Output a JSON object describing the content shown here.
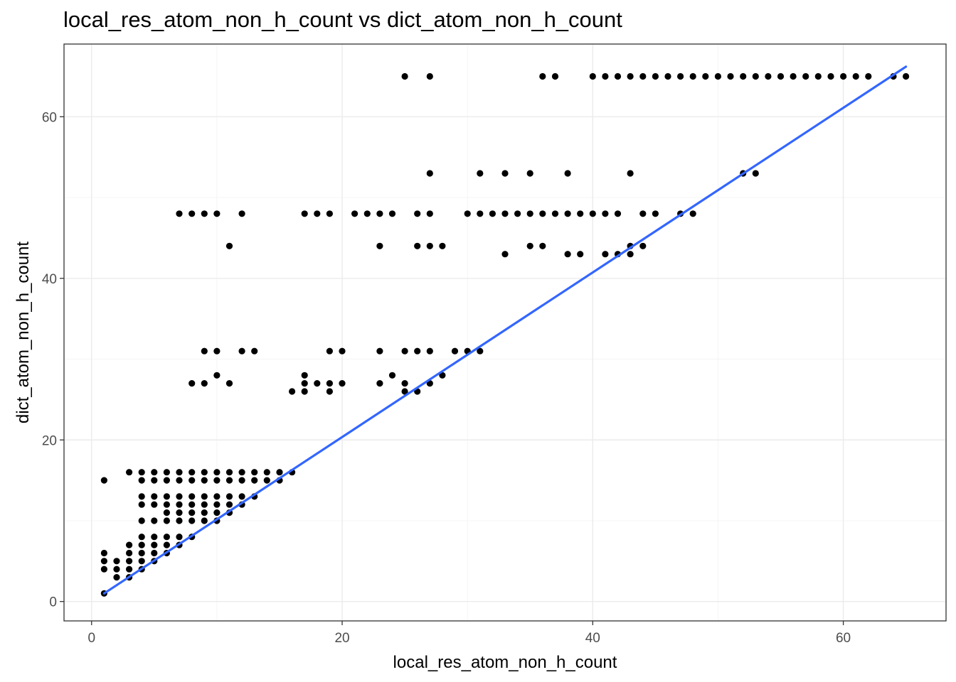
{
  "chart_data": {
    "type": "scatter",
    "title": "local_res_atom_non_h_count vs dict_atom_non_h_count",
    "xlabel": "local_res_atom_non_h_count",
    "ylabel": "dict_atom_non_h_count",
    "xlim": [
      -2.2,
      68.2
    ],
    "ylim": [
      -2.4,
      69.0
    ],
    "x_ticks": [
      0,
      20,
      40,
      60
    ],
    "y_ticks": [
      0,
      20,
      40,
      60
    ],
    "grid": true,
    "point_color": "#000000",
    "fit_line": {
      "color": "#3366ff",
      "x": [
        1,
        65
      ],
      "y": [
        1.0,
        66.2
      ]
    },
    "points": [
      [
        1,
        1
      ],
      [
        1,
        4
      ],
      [
        1,
        5
      ],
      [
        1,
        6
      ],
      [
        1,
        15
      ],
      [
        2,
        3
      ],
      [
        2,
        4
      ],
      [
        2,
        5
      ],
      [
        3,
        3
      ],
      [
        3,
        4
      ],
      [
        3,
        5
      ],
      [
        3,
        6
      ],
      [
        3,
        7
      ],
      [
        3,
        16
      ],
      [
        4,
        4
      ],
      [
        4,
        5
      ],
      [
        4,
        6
      ],
      [
        4,
        7
      ],
      [
        4,
        8
      ],
      [
        4,
        10
      ],
      [
        4,
        12
      ],
      [
        4,
        13
      ],
      [
        4,
        15
      ],
      [
        4,
        16
      ],
      [
        5,
        5
      ],
      [
        5,
        6
      ],
      [
        5,
        7
      ],
      [
        5,
        8
      ],
      [
        5,
        10
      ],
      [
        5,
        12
      ],
      [
        5,
        13
      ],
      [
        5,
        15
      ],
      [
        5,
        16
      ],
      [
        6,
        6
      ],
      [
        6,
        7
      ],
      [
        6,
        8
      ],
      [
        6,
        10
      ],
      [
        6,
        11
      ],
      [
        6,
        12
      ],
      [
        6,
        13
      ],
      [
        6,
        15
      ],
      [
        6,
        16
      ],
      [
        7,
        7
      ],
      [
        7,
        8
      ],
      [
        7,
        10
      ],
      [
        7,
        11
      ],
      [
        7,
        12
      ],
      [
        7,
        13
      ],
      [
        7,
        15
      ],
      [
        7,
        16
      ],
      [
        7,
        48
      ],
      [
        8,
        8
      ],
      [
        8,
        10
      ],
      [
        8,
        11
      ],
      [
        8,
        12
      ],
      [
        8,
        13
      ],
      [
        8,
        15
      ],
      [
        8,
        16
      ],
      [
        8,
        27
      ],
      [
        8,
        48
      ],
      [
        9,
        10
      ],
      [
        9,
        11
      ],
      [
        9,
        12
      ],
      [
        9,
        13
      ],
      [
        9,
        15
      ],
      [
        9,
        16
      ],
      [
        9,
        27
      ],
      [
        9,
        31
      ],
      [
        9,
        48
      ],
      [
        10,
        10
      ],
      [
        10,
        11
      ],
      [
        10,
        12
      ],
      [
        10,
        13
      ],
      [
        10,
        15
      ],
      [
        10,
        16
      ],
      [
        10,
        28
      ],
      [
        10,
        31
      ],
      [
        10,
        48
      ],
      [
        11,
        11
      ],
      [
        11,
        12
      ],
      [
        11,
        13
      ],
      [
        11,
        15
      ],
      [
        11,
        16
      ],
      [
        11,
        27
      ],
      [
        11,
        44
      ],
      [
        12,
        12
      ],
      [
        12,
        13
      ],
      [
        12,
        15
      ],
      [
        12,
        16
      ],
      [
        12,
        31
      ],
      [
        12,
        48
      ],
      [
        13,
        13
      ],
      [
        13,
        15
      ],
      [
        13,
        16
      ],
      [
        13,
        31
      ],
      [
        14,
        15
      ],
      [
        14,
        16
      ],
      [
        15,
        15
      ],
      [
        15,
        16
      ],
      [
        16,
        16
      ],
      [
        16,
        26
      ],
      [
        17,
        26
      ],
      [
        17,
        27
      ],
      [
        17,
        28
      ],
      [
        17,
        48
      ],
      [
        18,
        27
      ],
      [
        18,
        48
      ],
      [
        19,
        26
      ],
      [
        19,
        27
      ],
      [
        19,
        31
      ],
      [
        19,
        48
      ],
      [
        20,
        27
      ],
      [
        20,
        31
      ],
      [
        21,
        48
      ],
      [
        22,
        48
      ],
      [
        23,
        27
      ],
      [
        23,
        31
      ],
      [
        23,
        44
      ],
      [
        23,
        48
      ],
      [
        24,
        28
      ],
      [
        24,
        48
      ],
      [
        25,
        26
      ],
      [
        25,
        27
      ],
      [
        25,
        31
      ],
      [
        25,
        65
      ],
      [
        26,
        26
      ],
      [
        26,
        31
      ],
      [
        26,
        44
      ],
      [
        26,
        48
      ],
      [
        27,
        27
      ],
      [
        27,
        31
      ],
      [
        27,
        44
      ],
      [
        27,
        48
      ],
      [
        27,
        53
      ],
      [
        27,
        65
      ],
      [
        28,
        28
      ],
      [
        28,
        44
      ],
      [
        29,
        31
      ],
      [
        30,
        31
      ],
      [
        30,
        48
      ],
      [
        31,
        31
      ],
      [
        31,
        48
      ],
      [
        31,
        53
      ],
      [
        32,
        48
      ],
      [
        33,
        43
      ],
      [
        33,
        48
      ],
      [
        33,
        53
      ],
      [
        34,
        48
      ],
      [
        35,
        44
      ],
      [
        35,
        48
      ],
      [
        35,
        53
      ],
      [
        36,
        44
      ],
      [
        36,
        48
      ],
      [
        36,
        65
      ],
      [
        37,
        48
      ],
      [
        37,
        65
      ],
      [
        38,
        43
      ],
      [
        38,
        48
      ],
      [
        38,
        53
      ],
      [
        39,
        43
      ],
      [
        39,
        48
      ],
      [
        40,
        48
      ],
      [
        40,
        65
      ],
      [
        41,
        43
      ],
      [
        41,
        48
      ],
      [
        41,
        65
      ],
      [
        42,
        43
      ],
      [
        42,
        48
      ],
      [
        42,
        65
      ],
      [
        43,
        43
      ],
      [
        43,
        44
      ],
      [
        43,
        53
      ],
      [
        43,
        65
      ],
      [
        44,
        44
      ],
      [
        44,
        48
      ],
      [
        44,
        65
      ],
      [
        45,
        48
      ],
      [
        45,
        65
      ],
      [
        46,
        65
      ],
      [
        47,
        48
      ],
      [
        47,
        65
      ],
      [
        48,
        48
      ],
      [
        48,
        65
      ],
      [
        49,
        65
      ],
      [
        50,
        65
      ],
      [
        51,
        65
      ],
      [
        52,
        53
      ],
      [
        52,
        65
      ],
      [
        53,
        53
      ],
      [
        53,
        65
      ],
      [
        54,
        65
      ],
      [
        55,
        65
      ],
      [
        56,
        65
      ],
      [
        57,
        65
      ],
      [
        58,
        65
      ],
      [
        59,
        65
      ],
      [
        60,
        65
      ],
      [
        61,
        65
      ],
      [
        62,
        65
      ],
      [
        64,
        65
      ],
      [
        65,
        65
      ]
    ]
  }
}
